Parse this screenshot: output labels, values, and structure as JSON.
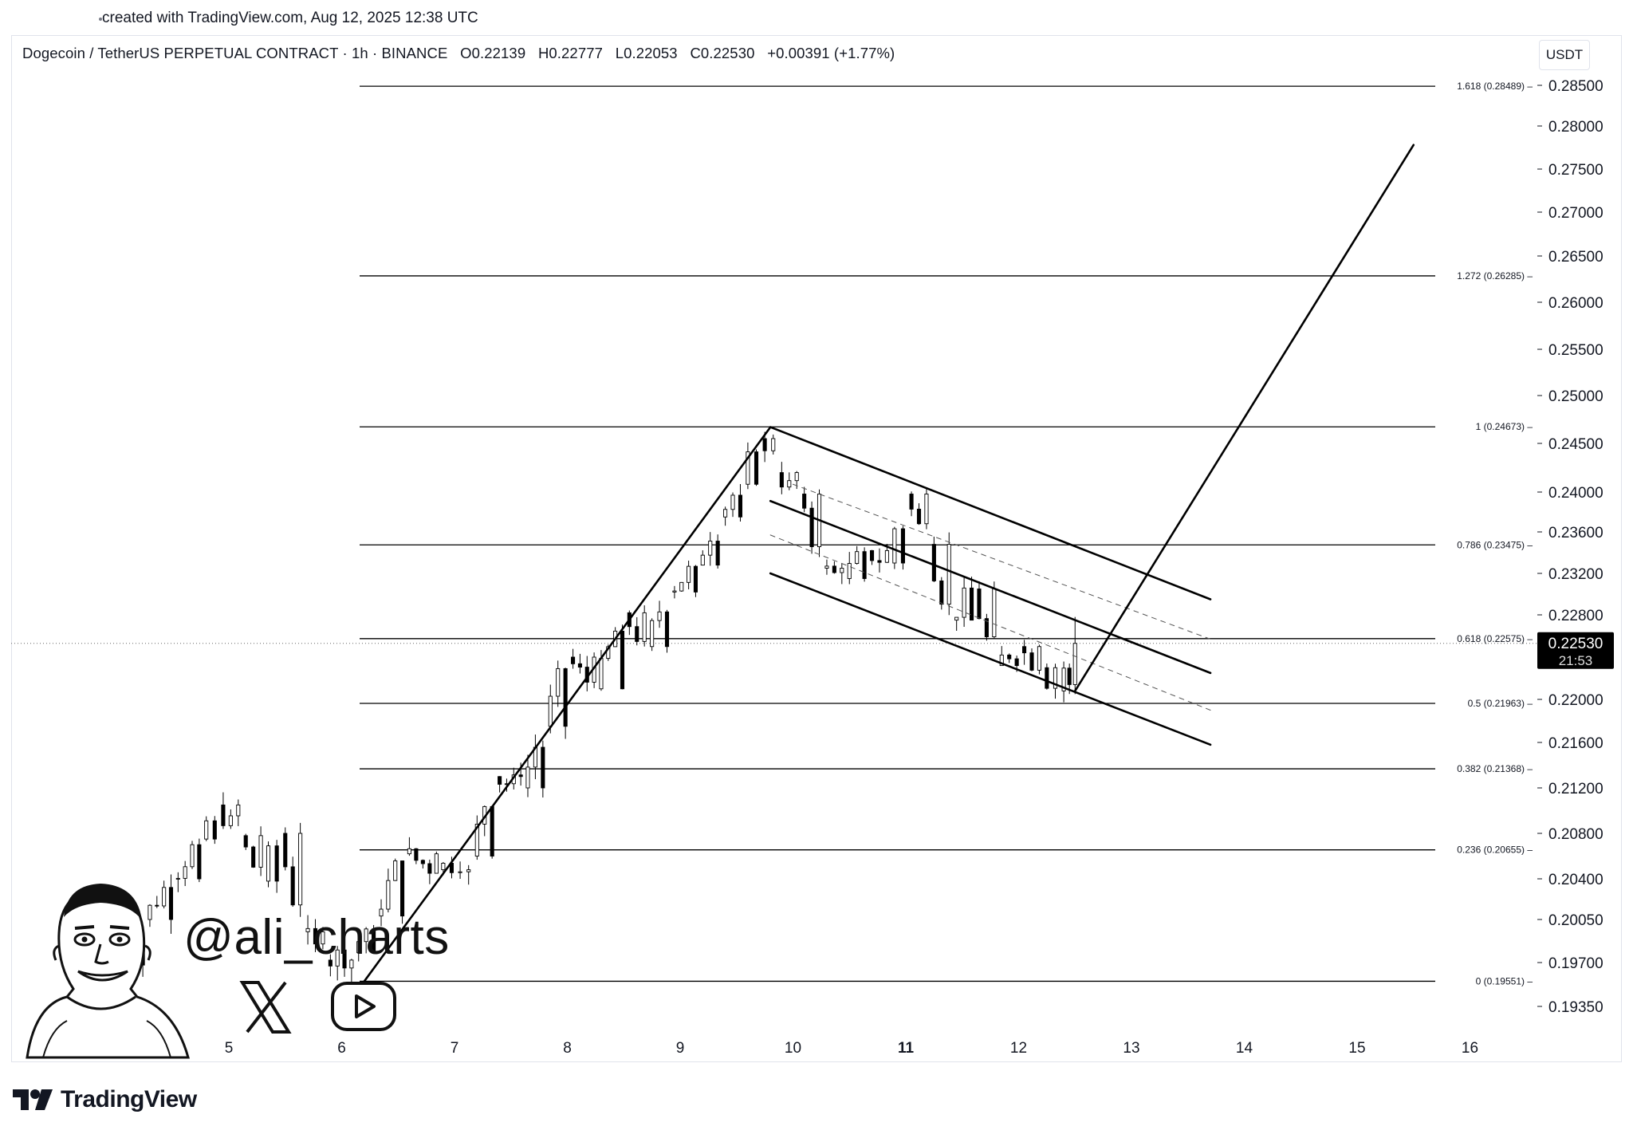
{
  "attribution": "created with TradingView.com, Aug 12, 2025 12:38 UTC",
  "header": {
    "symbol": "Dogecoin / TetherUS PERPETUAL CONTRACT · 1h · BINANCE",
    "open": "O0.22139",
    "high": "H0.22777",
    "low": "L0.22053",
    "close": "C0.22530",
    "change": "+0.00391 (+1.77%)"
  },
  "currency": "USDT",
  "last_price": {
    "price": "0.22530",
    "countdown": "21:53"
  },
  "watermark": {
    "handle": "@ali_charts",
    "icons": [
      "x-logo-icon",
      "youtube-play-icon",
      "caricature-portrait"
    ]
  },
  "footer": {
    "brand": "TradingView",
    "logo_icon": "tradingview-logo-icon"
  },
  "colors": {
    "candle_up": "#ffffff",
    "candle_down": "#000000",
    "lines": "#000000",
    "price_tag": "#000000"
  },
  "chart_data": {
    "type": "candlestick",
    "title": "Dogecoin / TetherUS PERPETUAL CONTRACT · 1h · BINANCE",
    "xlabel": "",
    "ylabel": "",
    "x_ticks": [
      {
        "label": "5",
        "day": 5,
        "bold": false
      },
      {
        "label": "6",
        "day": 6,
        "bold": false
      },
      {
        "label": "7",
        "day": 7,
        "bold": false
      },
      {
        "label": "8",
        "day": 8,
        "bold": false
      },
      {
        "label": "9",
        "day": 9,
        "bold": false
      },
      {
        "label": "10",
        "day": 10,
        "bold": false
      },
      {
        "label": "11",
        "day": 11,
        "bold": true
      },
      {
        "label": "12",
        "day": 12,
        "bold": false
      },
      {
        "label": "13",
        "day": 13,
        "bold": false
      },
      {
        "label": "14",
        "day": 14,
        "bold": false
      },
      {
        "label": "15",
        "day": 15,
        "bold": false
      },
      {
        "label": "16",
        "day": 16,
        "bold": false
      }
    ],
    "y_ticks": [
      "0.28500",
      "0.28000",
      "0.27500",
      "0.27000",
      "0.26500",
      "0.26000",
      "0.25500",
      "0.25000",
      "0.24500",
      "0.24000",
      "0.23600",
      "0.23200",
      "0.22800",
      "0.22000",
      "0.21600",
      "0.21200",
      "0.20800",
      "0.20400",
      "0.20050",
      "0.19700",
      "0.19350"
    ],
    "fib_levels": [
      {
        "label": "1.618 (0.28489)",
        "value": 0.28489
      },
      {
        "label": "1.272 (0.26285)",
        "value": 0.26285
      },
      {
        "label": "1 (0.24673)",
        "value": 0.24673
      },
      {
        "label": "0.786 (0.23475)",
        "value": 0.23475
      },
      {
        "label": "0.618 (0.22575)",
        "value": 0.22575
      },
      {
        "label": "0.5 (0.21963)",
        "value": 0.21963
      },
      {
        "label": "0.382 (0.21368)",
        "value": 0.21368
      },
      {
        "label": "0.236 (0.20655)",
        "value": 0.20655
      },
      {
        "label": "0 (0.19551)",
        "value": 0.19551
      }
    ],
    "last_price": 0.2253,
    "pattern": "bull flag",
    "flagpole": {
      "from": [
        6.2,
        0.1955
      ],
      "to": [
        9.8,
        0.2467
      ]
    },
    "channel": {
      "upper": {
        "from": [
          9.8,
          0.2467
        ],
        "to": [
          13.7,
          0.2295
        ]
      },
      "middle": {
        "from": [
          9.8,
          0.2391
        ],
        "to": [
          13.7,
          0.2225
        ]
      },
      "lower": {
        "from": [
          9.8,
          0.232
        ],
        "to": [
          13.7,
          0.2158
        ]
      },
      "dashed_upper": {
        "from": [
          10.0,
          0.2408
        ],
        "to": [
          13.7,
          0.2257
        ]
      },
      "dashed_lower": {
        "from": [
          9.8,
          0.2357
        ],
        "to": [
          13.7,
          0.219
        ]
      }
    },
    "projection": {
      "from": [
        12.5,
        0.2208
      ],
      "to": [
        15.5,
        0.2778
      ]
    },
    "ohlc_sample": [
      {
        "t": 4.05,
        "o": 0.196,
        "h": 0.1975,
        "l": 0.1952,
        "c": 0.1968
      },
      {
        "t": 4.3,
        "o": 0.1968,
        "h": 0.2012,
        "l": 0.196,
        "c": 0.2005
      },
      {
        "t": 4.55,
        "o": 0.2005,
        "h": 0.205,
        "l": 0.1998,
        "c": 0.204
      },
      {
        "t": 4.8,
        "o": 0.204,
        "h": 0.2082,
        "l": 0.203,
        "c": 0.2075
      },
      {
        "t": 4.95,
        "o": 0.2075,
        "h": 0.2112,
        "l": 0.2062,
        "c": 0.2105
      },
      {
        "t": 5.15,
        "o": 0.2105,
        "h": 0.211,
        "l": 0.207,
        "c": 0.2078
      },
      {
        "t": 5.35,
        "o": 0.2078,
        "h": 0.2085,
        "l": 0.203,
        "c": 0.2038
      },
      {
        "t": 5.5,
        "o": 0.2038,
        "h": 0.209,
        "l": 0.203,
        "c": 0.208
      },
      {
        "t": 5.7,
        "o": 0.208,
        "h": 0.2088,
        "l": 0.1985,
        "c": 0.1995
      },
      {
        "t": 5.9,
        "o": 0.1995,
        "h": 0.2,
        "l": 0.1962,
        "c": 0.1972
      },
      {
        "t": 6.15,
        "o": 0.1972,
        "h": 0.1982,
        "l": 0.1955,
        "c": 0.1978
      },
      {
        "t": 6.35,
        "o": 0.1978,
        "h": 0.2015,
        "l": 0.1972,
        "c": 0.2008
      },
      {
        "t": 6.6,
        "o": 0.2008,
        "h": 0.2072,
        "l": 0.2,
        "c": 0.2062
      },
      {
        "t": 6.9,
        "o": 0.2062,
        "h": 0.2068,
        "l": 0.204,
        "c": 0.2048
      },
      {
        "t": 7.2,
        "o": 0.2048,
        "h": 0.2068,
        "l": 0.204,
        "c": 0.206
      },
      {
        "t": 7.4,
        "o": 0.206,
        "h": 0.214,
        "l": 0.2055,
        "c": 0.213
      },
      {
        "t": 7.65,
        "o": 0.213,
        "h": 0.2142,
        "l": 0.2112,
        "c": 0.212
      },
      {
        "t": 7.85,
        "o": 0.212,
        "h": 0.2182,
        "l": 0.2115,
        "c": 0.2175
      },
      {
        "t": 8.05,
        "o": 0.2175,
        "h": 0.2248,
        "l": 0.217,
        "c": 0.224
      },
      {
        "t": 8.3,
        "o": 0.224,
        "h": 0.2262,
        "l": 0.2195,
        "c": 0.221
      },
      {
        "t": 8.55,
        "o": 0.221,
        "h": 0.229,
        "l": 0.2195,
        "c": 0.2282
      },
      {
        "t": 8.75,
        "o": 0.2282,
        "h": 0.229,
        "l": 0.2202,
        "c": 0.225
      },
      {
        "t": 8.95,
        "o": 0.225,
        "h": 0.231,
        "l": 0.2245,
        "c": 0.2302
      },
      {
        "t": 9.2,
        "o": 0.2302,
        "h": 0.2335,
        "l": 0.2295,
        "c": 0.2328
      },
      {
        "t": 9.4,
        "o": 0.2328,
        "h": 0.2382,
        "l": 0.2322,
        "c": 0.2375
      },
      {
        "t": 9.6,
        "o": 0.2375,
        "h": 0.242,
        "l": 0.2362,
        "c": 0.2408
      },
      {
        "t": 9.75,
        "o": 0.2408,
        "h": 0.2467,
        "l": 0.24,
        "c": 0.2455
      },
      {
        "t": 9.9,
        "o": 0.2455,
        "h": 0.246,
        "l": 0.2412,
        "c": 0.242
      },
      {
        "t": 10.1,
        "o": 0.242,
        "h": 0.2432,
        "l": 0.2385,
        "c": 0.2398
      },
      {
        "t": 10.3,
        "o": 0.2398,
        "h": 0.2402,
        "l": 0.2318,
        "c": 0.2325
      },
      {
        "t": 10.5,
        "o": 0.2325,
        "h": 0.2345,
        "l": 0.23,
        "c": 0.2315
      },
      {
        "t": 10.7,
        "o": 0.2315,
        "h": 0.2355,
        "l": 0.2308,
        "c": 0.2342
      },
      {
        "t": 10.9,
        "o": 0.2342,
        "h": 0.2352,
        "l": 0.232,
        "c": 0.233
      },
      {
        "t": 11.05,
        "o": 0.233,
        "h": 0.241,
        "l": 0.2325,
        "c": 0.2398
      },
      {
        "t": 11.25,
        "o": 0.2398,
        "h": 0.2405,
        "l": 0.234,
        "c": 0.2348
      },
      {
        "t": 11.45,
        "o": 0.2348,
        "h": 0.2352,
        "l": 0.2262,
        "c": 0.2275
      },
      {
        "t": 11.65,
        "o": 0.2275,
        "h": 0.2315,
        "l": 0.2262,
        "c": 0.2305
      },
      {
        "t": 11.85,
        "o": 0.2305,
        "h": 0.2312,
        "l": 0.2222,
        "c": 0.2232
      },
      {
        "t": 12.05,
        "o": 0.2232,
        "h": 0.2262,
        "l": 0.2215,
        "c": 0.225
      },
      {
        "t": 12.25,
        "o": 0.225,
        "h": 0.2262,
        "l": 0.2222,
        "c": 0.223
      },
      {
        "t": 12.4,
        "o": 0.223,
        "h": 0.224,
        "l": 0.2198,
        "c": 0.2208
      },
      {
        "t": 12.5,
        "o": 0.2214,
        "h": 0.2278,
        "l": 0.2205,
        "c": 0.2253
      }
    ]
  }
}
